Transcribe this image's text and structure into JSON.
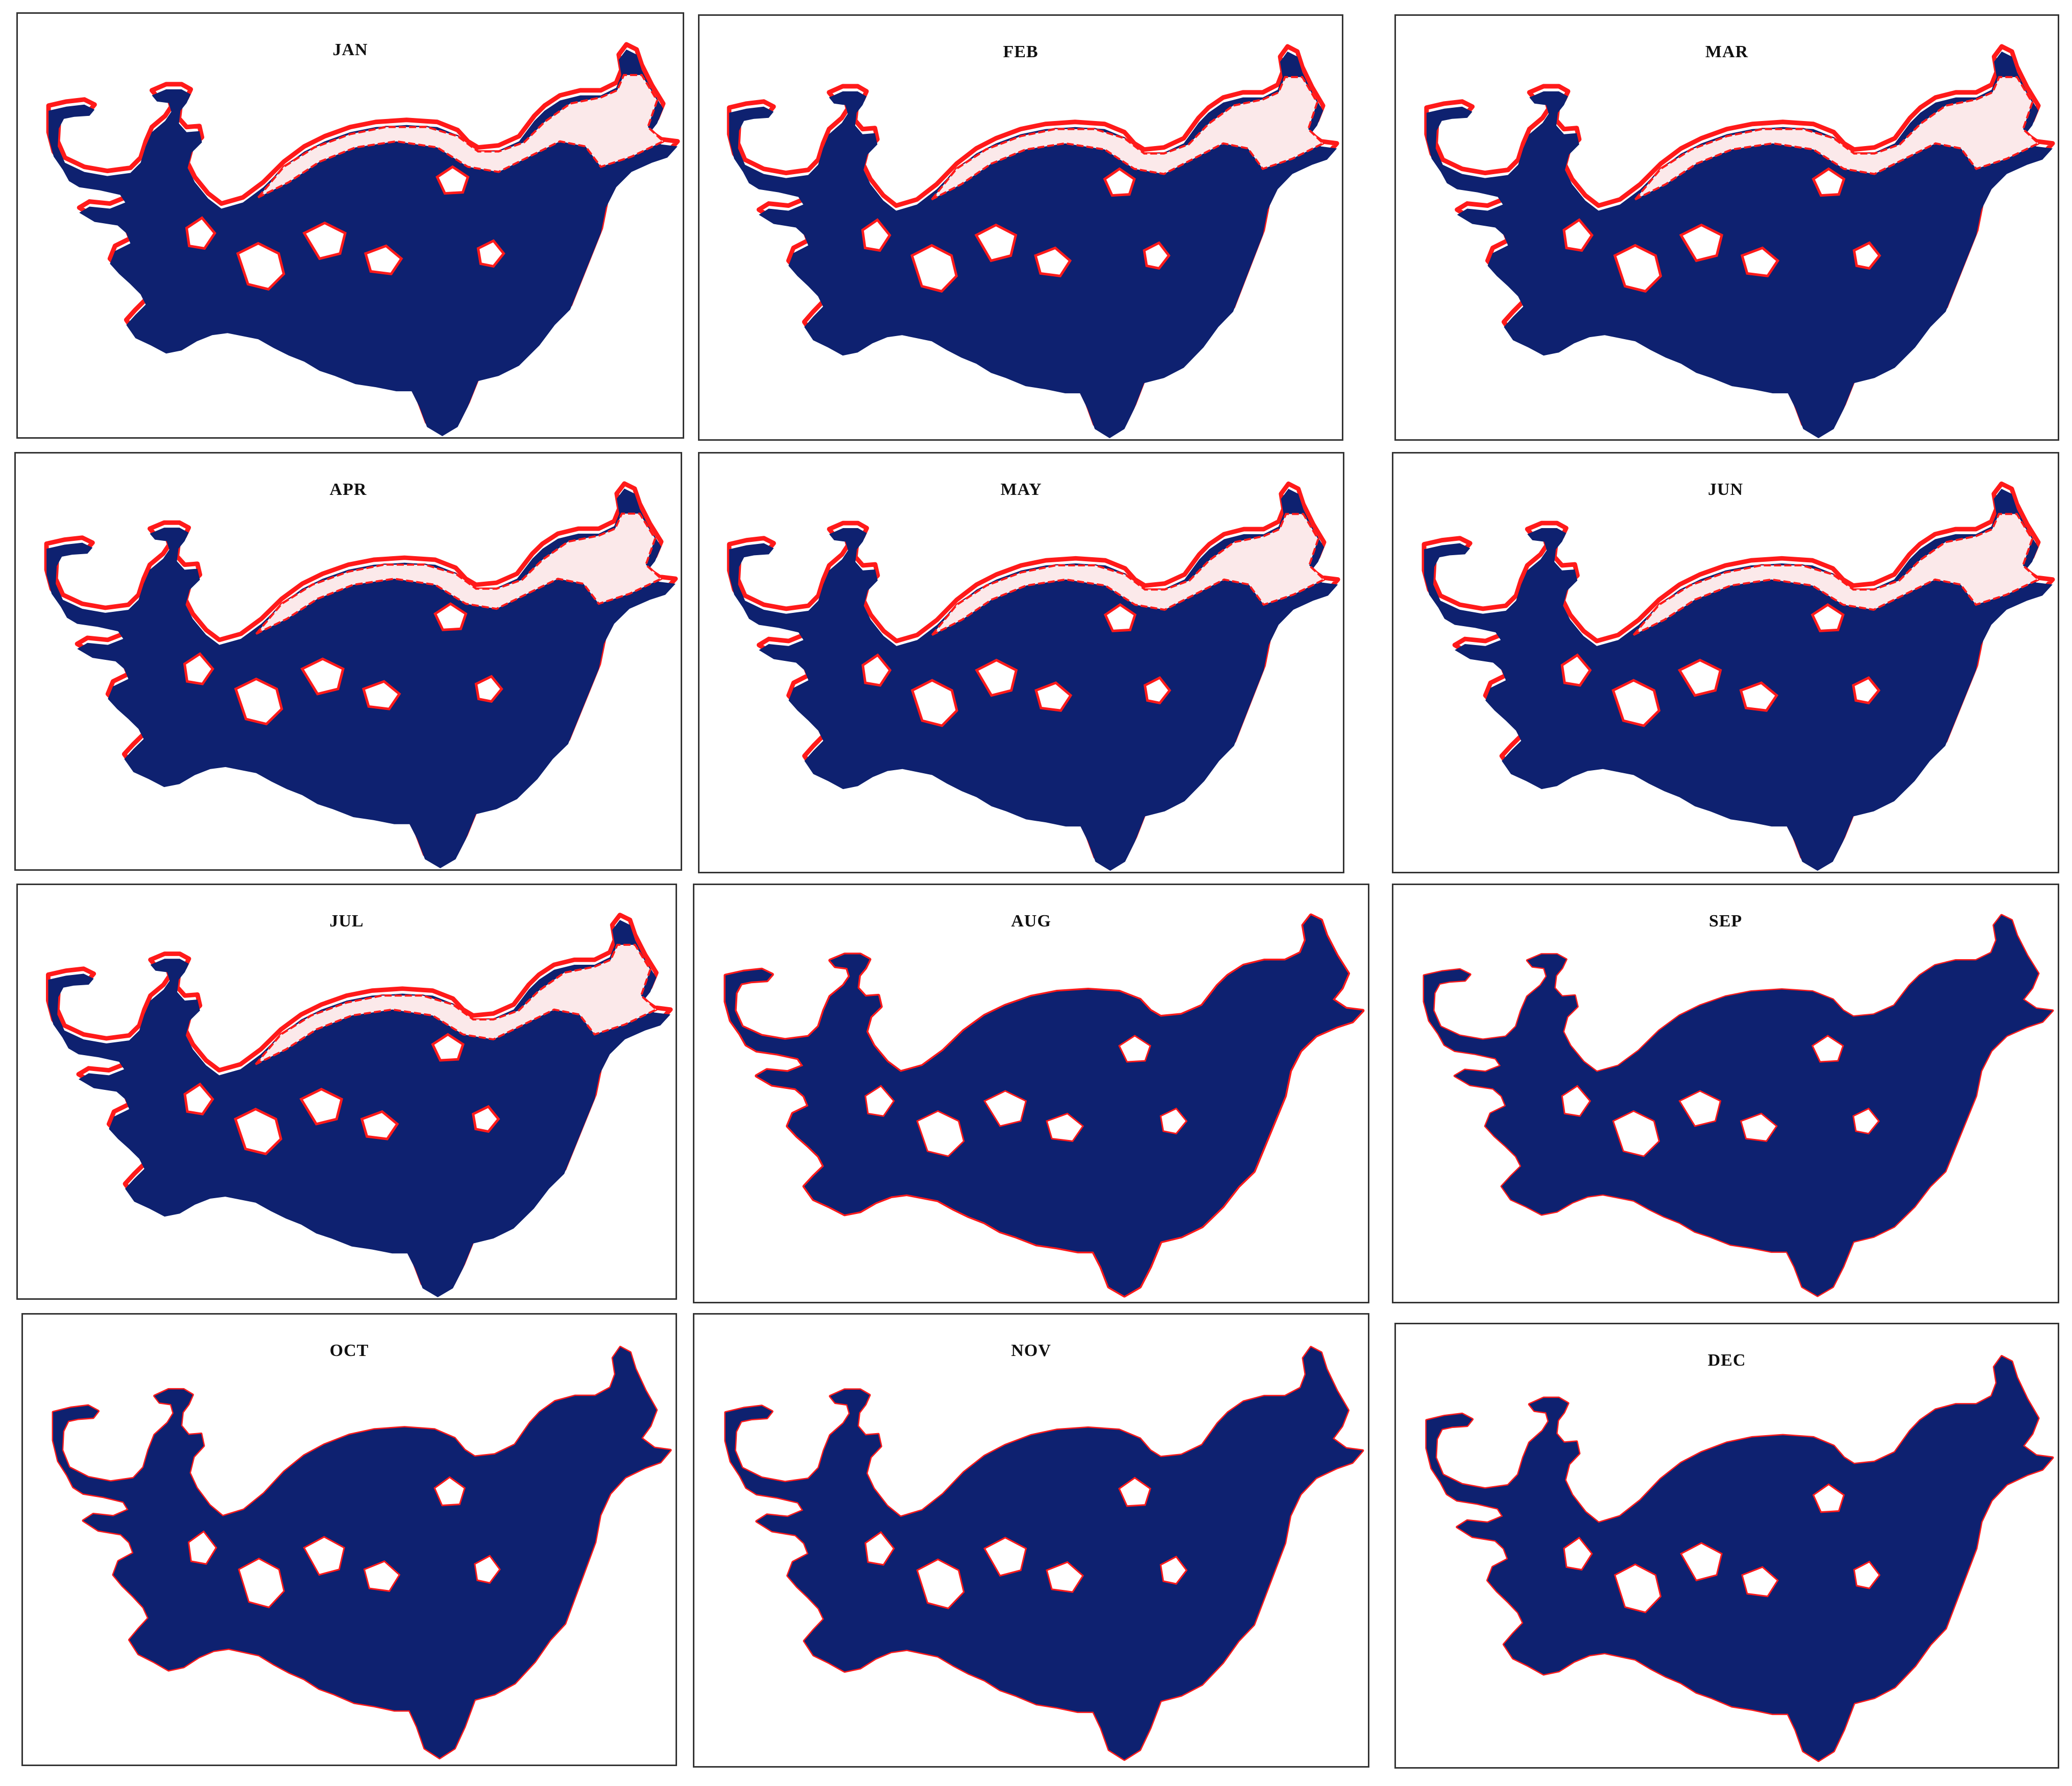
{
  "figure": {
    "panels": [
      {
        "month": "JAN",
        "level": "high"
      },
      {
        "month": "FEB",
        "level": "high"
      },
      {
        "month": "MAR",
        "level": "high"
      },
      {
        "month": "APR",
        "level": "high"
      },
      {
        "month": "MAY",
        "level": "high"
      },
      {
        "month": "JUN",
        "level": "high"
      },
      {
        "month": "JUL",
        "level": "high"
      },
      {
        "month": "AUG",
        "level": "medium"
      },
      {
        "month": "SEP",
        "level": "low"
      },
      {
        "month": "OCT",
        "level": "low"
      },
      {
        "month": "NOV",
        "level": "low"
      },
      {
        "month": "DEC",
        "level": "low"
      }
    ],
    "colors": {
      "water": "#0e2170",
      "boundary": "#ff1a1a",
      "panel_border": "#333333",
      "background": "#ffffff"
    }
  }
}
